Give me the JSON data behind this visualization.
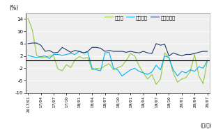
{
  "ylabel": "(%)",
  "xlabel": "(年/月)",
  "ylim": [
    -10,
    16
  ],
  "yticks": [
    -10,
    -6,
    -2,
    2,
    6,
    10,
    14
  ],
  "ytick_labels": [
    "-10",
    "-6",
    "-2",
    "2",
    "6",
    "10",
    "14"
  ],
  "colors_jutakuchi": "#92c83e",
  "colors_kodate": "#00b0f0",
  "colors_mansion": "#1f3864",
  "legend_labels": [
    "住宅地",
    "戸建住宅",
    "マンション"
  ],
  "x_tick_labels": [
    "2017/01",
    "17/04",
    "17/07",
    "17/10",
    "18/01",
    "18/04",
    "18/07",
    "18/10",
    "19/01",
    "19/04",
    "19/07",
    "19/10",
    "20/01",
    "20/04",
    "20/07"
  ],
  "x_tick_positions": [
    0,
    3,
    6,
    9,
    12,
    15,
    18,
    21,
    24,
    27,
    30,
    33,
    36,
    39,
    42
  ],
  "hline_y": 0.5,
  "plot_bg": "#f0f0f0",
  "jutakuchi": [
    14.2,
    10.5,
    2.2,
    1.5,
    1.5,
    2.0,
    2.0,
    -2.2,
    -2.8,
    -0.8,
    -1.8,
    0.8,
    1.8,
    1.2,
    1.5,
    -2.5,
    -2.0,
    -2.2,
    -1.2,
    -0.5,
    -2.5,
    -1.8,
    -1.2,
    0.5,
    2.8,
    2.0,
    -1.2,
    -3.5,
    -5.5,
    -4.0,
    -7.2,
    -5.5,
    3.0,
    1.5,
    -3.5,
    -6.5,
    -5.5,
    -5.0,
    -3.0,
    2.5,
    -4.5,
    -7.0,
    0.5
  ],
  "kodate": [
    2.2,
    1.8,
    1.5,
    1.8,
    2.0,
    1.2,
    2.5,
    2.5,
    2.2,
    2.5,
    2.8,
    2.5,
    3.5,
    3.0,
    3.2,
    -2.0,
    -2.5,
    -2.8,
    3.0,
    3.2,
    -2.0,
    -2.5,
    -4.5,
    -3.5,
    -2.5,
    -2.0,
    -3.0,
    -3.5,
    -4.0,
    -3.2,
    -1.0,
    -2.5,
    2.0,
    1.5,
    -2.5,
    -4.5,
    -3.0,
    -3.5,
    -2.5,
    -3.0,
    -1.5,
    -2.0,
    0.5
  ],
  "mansion": [
    6.0,
    6.2,
    6.2,
    5.5,
    3.5,
    3.8,
    3.0,
    3.2,
    4.8,
    4.0,
    3.2,
    3.8,
    3.5,
    3.0,
    3.5,
    4.8,
    4.8,
    4.5,
    3.5,
    3.8,
    3.5,
    3.5,
    3.5,
    3.2,
    3.5,
    3.2,
    3.0,
    3.5,
    3.0,
    2.8,
    6.0,
    5.5,
    5.8,
    2.0,
    3.0,
    2.5,
    2.0,
    2.5,
    2.5,
    2.8,
    3.2,
    3.5,
    3.5
  ]
}
